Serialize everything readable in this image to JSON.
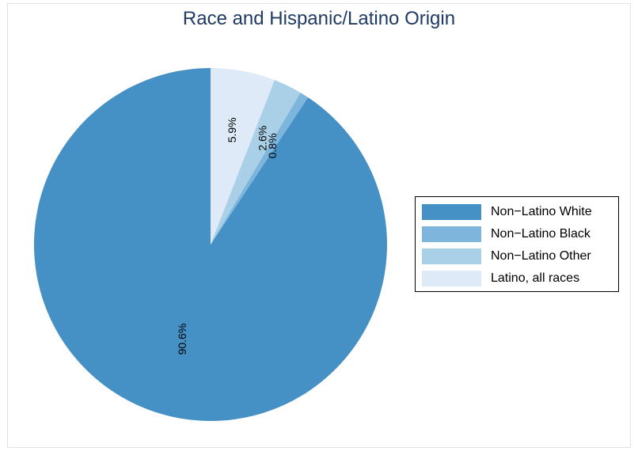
{
  "title": "Race and Hispanic/Latino Origin",
  "chart_data": {
    "type": "pie",
    "title": "Race and Hispanic/Latino Origin",
    "series": [
      {
        "name": "Non−Latino White",
        "value": 90.6,
        "label": "90.6%",
        "color": "#4590c5"
      },
      {
        "name": "Non−Latino Black",
        "value": 0.8,
        "label": "0.8%",
        "color": "#7db5dc"
      },
      {
        "name": "Non−Latino Other",
        "value": 2.6,
        "label": "2.6%",
        "color": "#a9d0e6"
      },
      {
        "name": "Latino, all races",
        "value": 5.9,
        "label": "5.9%",
        "color": "#deeaf7"
      }
    ],
    "legend_position": "right"
  }
}
